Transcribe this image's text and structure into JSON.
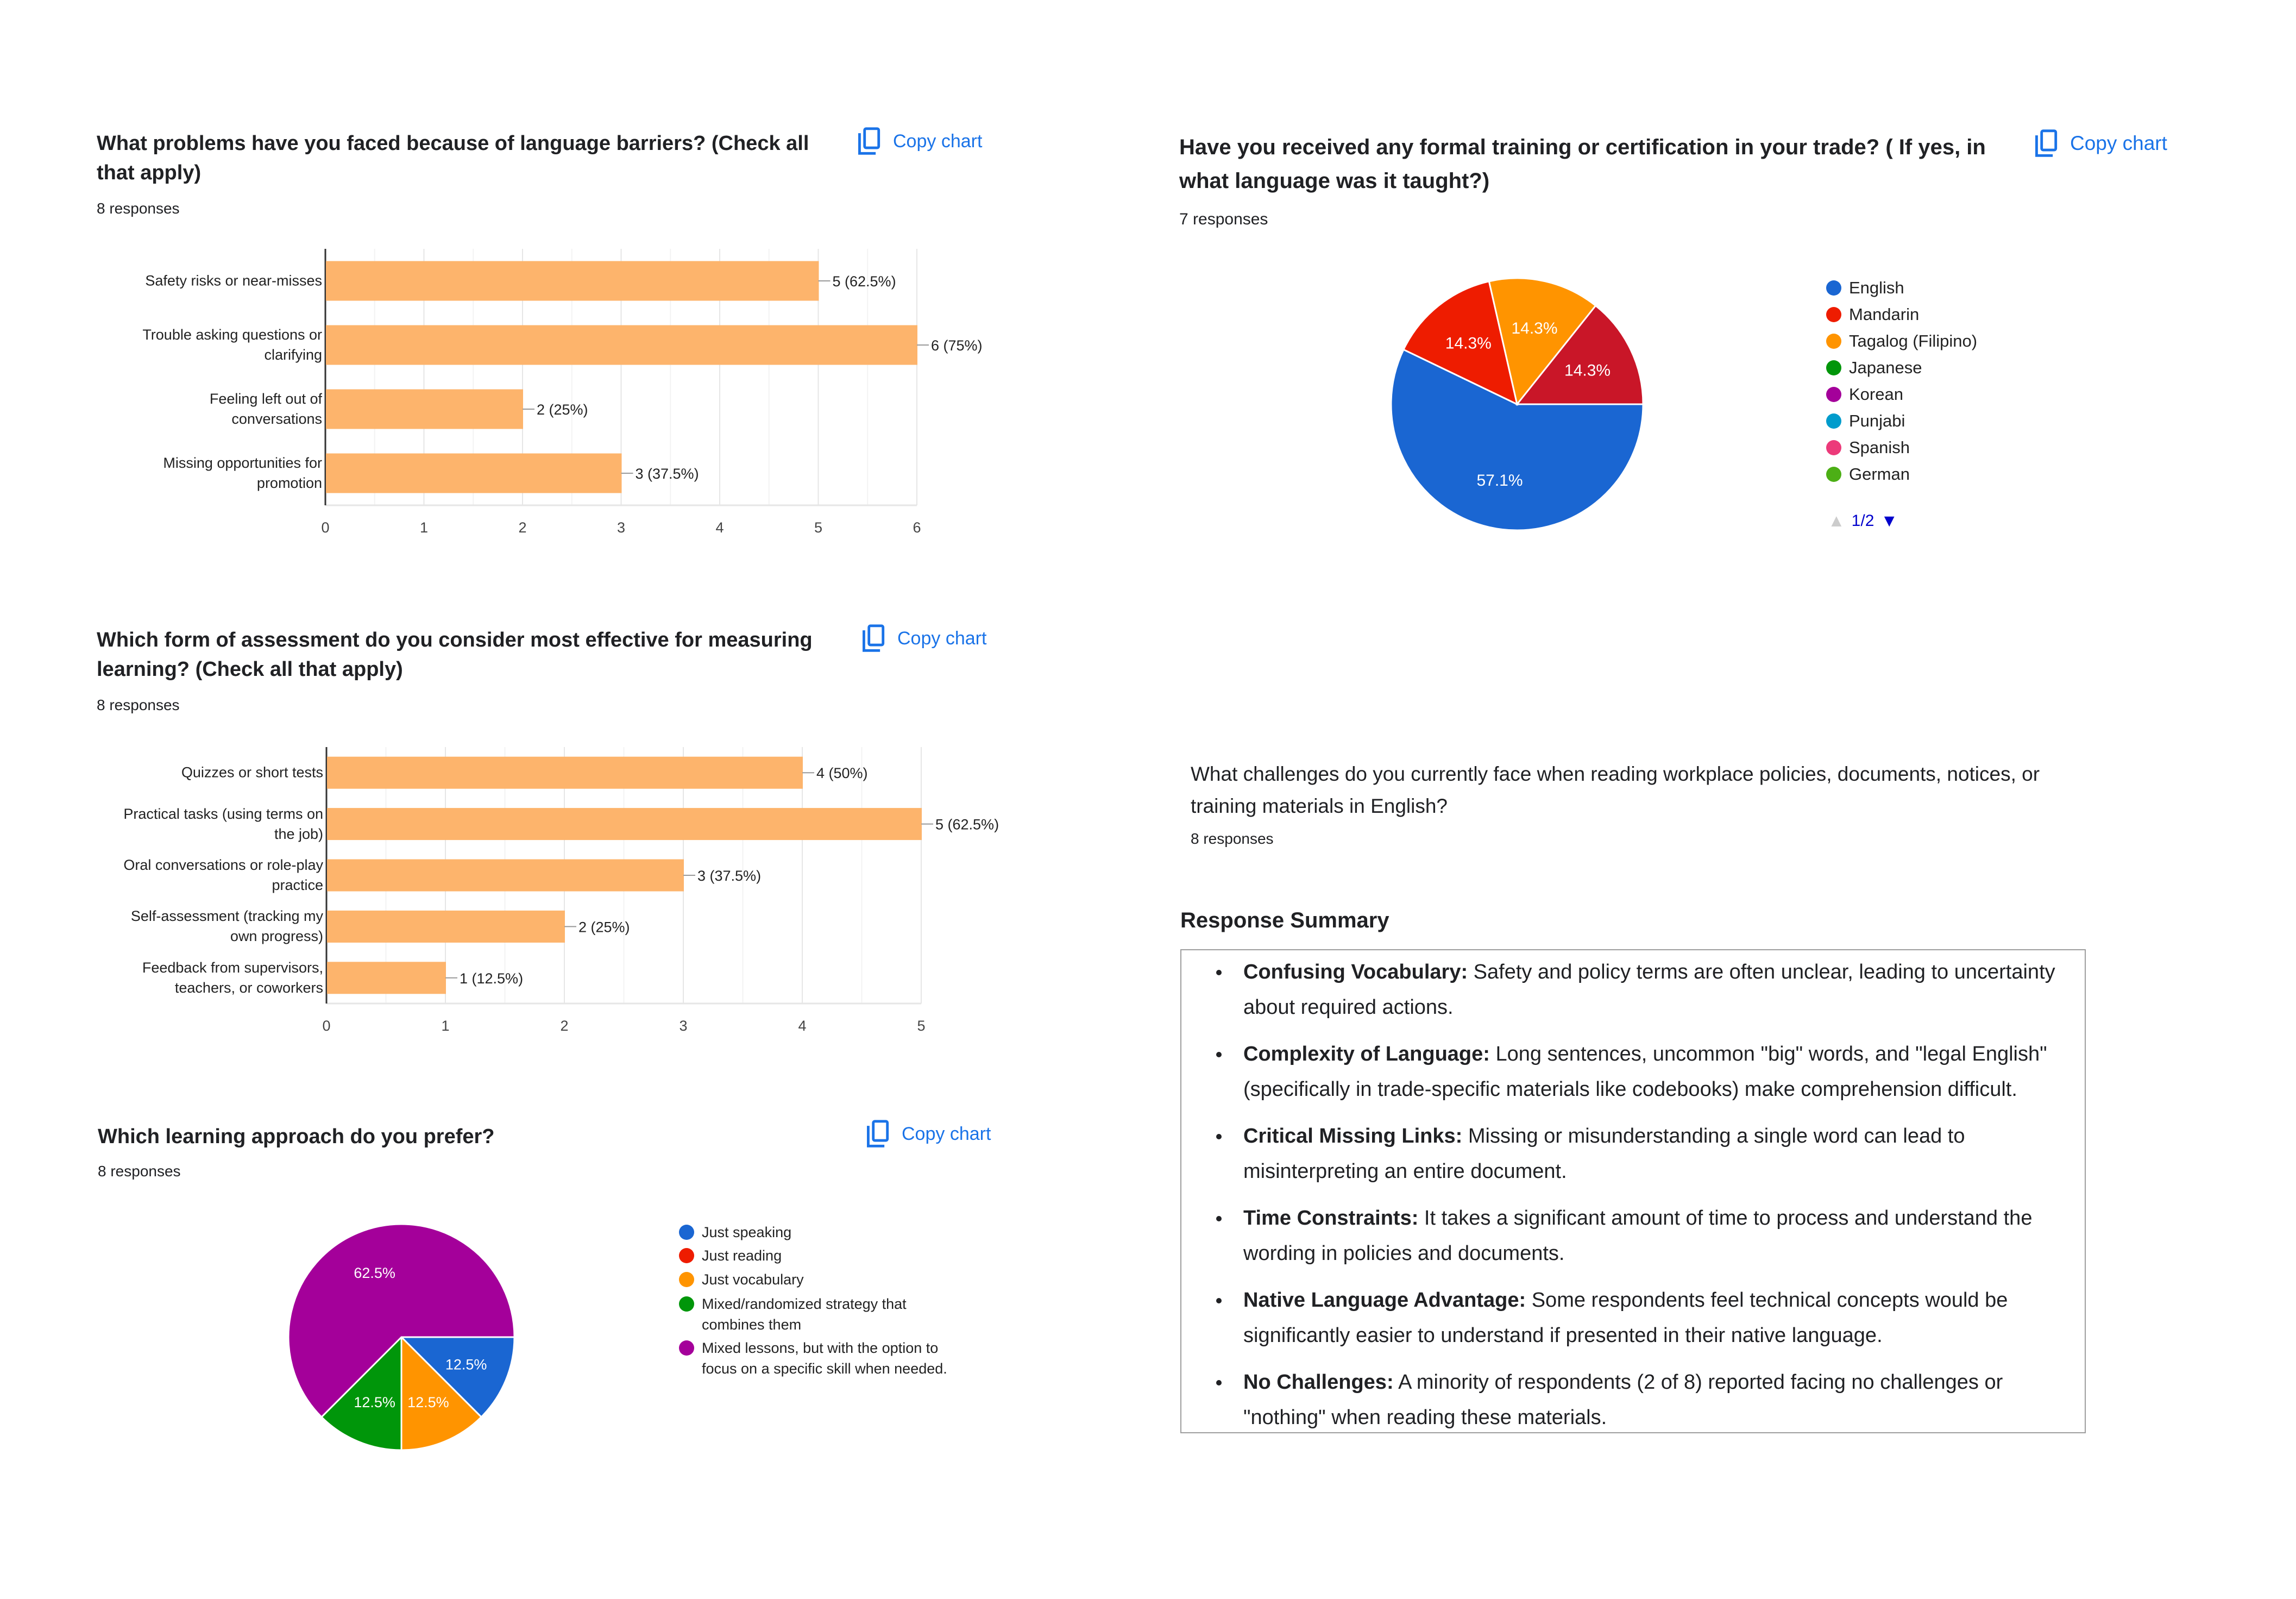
{
  "copy_label": "Copy chart",
  "chart_data": [
    {
      "type": "bar",
      "orientation": "horizontal",
      "title": "What problems have you faced because of language barriers? (Check all that apply)",
      "responses": "8 responses",
      "categories": [
        "Safety risks or near-misses",
        "Trouble asking questions or clarifying",
        "Feeling left out of conversations",
        "Missing opportunities for promotion"
      ],
      "values": [
        5,
        6,
        2,
        3
      ],
      "data_labels": [
        "5 (62.5%)",
        "6 (75%)",
        "2 (25%)",
        "3 (37.5%)"
      ],
      "xlim": [
        0,
        6
      ],
      "ticks": [
        "0",
        "1",
        "2",
        "3",
        "4",
        "5",
        "6"
      ],
      "color": "#fdb46c",
      "grid": true
    },
    {
      "type": "pie",
      "title": "Have you received any formal training or certification in your trade? ( If yes, in what language was it taught?)",
      "responses": "7 responses",
      "legend": [
        {
          "label": "English",
          "color": "#1a66d2"
        },
        {
          "label": "Mandarin",
          "color": "#ee1c00"
        },
        {
          "label": "Tagalog (Filipino)",
          "color": "#ff9400"
        },
        {
          "label": "Japanese",
          "color": "#00960a"
        },
        {
          "label": "Korean",
          "color": "#a4009a"
        },
        {
          "label": "Punjabi",
          "color": "#009ccc"
        },
        {
          "label": "Spanish",
          "color": "#ec3a7a"
        },
        {
          "label": "German",
          "color": "#4caf15"
        }
      ],
      "legend_page": "1/2",
      "legend_position": "right",
      "slices": [
        {
          "value": 4,
          "label": "57.1%",
          "color": "#1a66d2"
        },
        {
          "value": 1,
          "label": "14.3%",
          "color": "#ee1c00"
        },
        {
          "value": 1,
          "label": "14.3%",
          "color": "#ff9400"
        },
        {
          "value": 1,
          "label": "14.3%",
          "color": "#c91628"
        }
      ]
    },
    {
      "type": "bar",
      "orientation": "horizontal",
      "title": "Which form of assessment do you consider most effective for measuring learning? (Check all that apply)",
      "responses": "8 responses",
      "categories": [
        "Quizzes or short tests",
        "Practical tasks (using terms on the job)",
        "Oral conversations or role-play practice",
        "Self-assessment (tracking my own progress)",
        "Feedback from supervisors, teachers, or coworkers"
      ],
      "values": [
        4,
        5,
        3,
        2,
        1
      ],
      "data_labels": [
        "4 (50%)",
        "5 (62.5%)",
        "3 (37.5%)",
        "2 (25%)",
        "1 (12.5%)"
      ],
      "xlim": [
        0,
        5
      ],
      "ticks": [
        "0",
        "1",
        "2",
        "3",
        "4",
        "5"
      ],
      "color": "#fdb46c",
      "grid": true
    },
    {
      "type": "pie",
      "title": "Which learning approach do you prefer?",
      "responses": "8 responses",
      "legend": [
        {
          "label": "Just speaking",
          "color": "#1a66d2"
        },
        {
          "label": "Just reading",
          "color": "#ee1c00"
        },
        {
          "label": "Just vocabulary",
          "color": "#ff9400"
        },
        {
          "label": "Mixed/randomized strategy that combines them",
          "color": "#00960a"
        },
        {
          "label": "Mixed lessons, but with the option to focus on a specific skill when needed.",
          "color": "#a4009a"
        }
      ],
      "legend_position": "right",
      "slices": [
        {
          "value": 1,
          "label": "12.5%",
          "color": "#1a66d2"
        },
        {
          "value": 0,
          "label": "",
          "color": "#ee1c00"
        },
        {
          "value": 1,
          "label": "12.5%",
          "color": "#ff9400"
        },
        {
          "value": 1,
          "label": "12.5%",
          "color": "#00960a"
        },
        {
          "value": 5,
          "label": "62.5%",
          "color": "#a4009a"
        }
      ]
    }
  ],
  "text_question": {
    "title": "What challenges do you currently face when reading workplace policies, documents, notices, or training materials in English?",
    "responses": "8 responses",
    "summary_heading": "Response Summary",
    "summary": [
      {
        "term": "Confusing Vocabulary:",
        "text": " Safety and policy terms are often unclear, leading to uncertainty about required actions."
      },
      {
        "term": "Complexity of Language:",
        "text": " Long sentences, uncommon \"big\" words, and \"legal English\" (specifically in trade-specific materials like codebooks) make comprehension difficult."
      },
      {
        "term": "Critical Missing Links:",
        "text": " Missing or misunderstanding a single word can lead to misinterpreting an entire document."
      },
      {
        "term": "Time Constraints:",
        "text": " It takes a significant amount of time to process and understand the wording in policies and documents."
      },
      {
        "term": "Native Language Advantage:",
        "text": " Some respondents feel technical concepts would be significantly easier to understand if presented in their native language."
      },
      {
        "term": "No Challenges:",
        "text": " A minority of respondents (2 of 8) reported facing no challenges or \"nothing\" when reading these materials."
      }
    ]
  }
}
